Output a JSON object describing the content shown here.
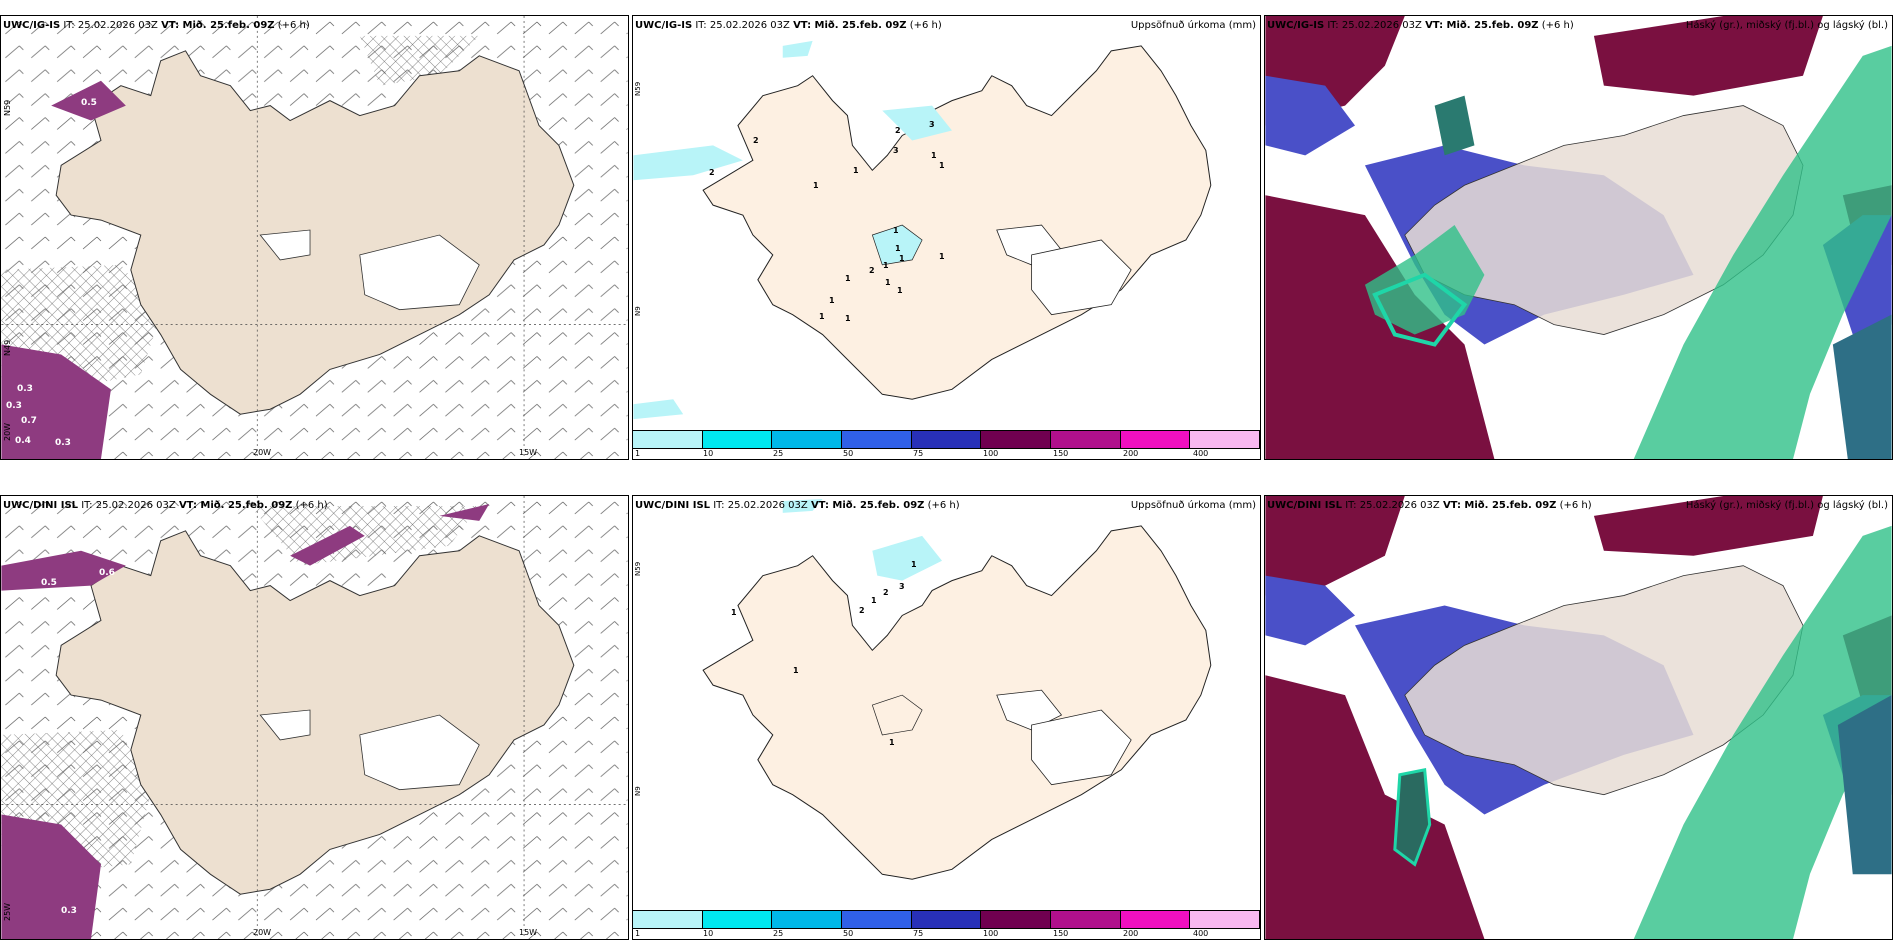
{
  "rows": [
    {
      "model": "UWC/IG-IS",
      "wind": {
        "lon_labels": [
          "20W",
          "15W"
        ],
        "lat_labels": [
          "N59",
          "N49",
          "20W"
        ],
        "values": [
          "0.3",
          "0.5",
          "0.7",
          "0.4",
          "0.3",
          "0.3"
        ]
      },
      "precip": {
        "lat_label": "N59",
        "lat_label2": "N9",
        "contour_labels": [
          "2",
          "2",
          "1",
          "1",
          "2",
          "3",
          "3",
          "1",
          "1",
          "1",
          "1",
          "1",
          "2",
          "1",
          "1",
          "1",
          "1",
          "1",
          "1",
          "1",
          "1"
        ]
      }
    },
    {
      "model": "UWC/DINI ISL",
      "wind": {
        "lon_labels": [
          "20W",
          "15W"
        ],
        "lat_labels": [
          "25W"
        ],
        "values": [
          "0.5",
          "0.6",
          "0.3"
        ]
      },
      "precip": {
        "lat_label": "N59",
        "lat_label2": "N9",
        "contour_labels": [
          "1",
          "1",
          "2",
          "2",
          "3",
          "1",
          "1",
          "1"
        ]
      }
    }
  ],
  "header": {
    "it_prefix": "IT:",
    "it_value": "25.02.2026 03Z",
    "vt_label": "VT: Mið. 25.feb. 09Z",
    "lead": "(+6 h)"
  },
  "precip_title": "Uppsöfnuð úrkoma (mm)",
  "cloud_title": "Háský (gr.), miðský (fj.bl.) og lágský (bl.)",
  "colorbar": {
    "ticks": [
      "1",
      "10",
      "25",
      "50",
      "75",
      "100",
      "150",
      "200",
      "400"
    ],
    "colors": [
      "#b8f4f8",
      "#00e8f0",
      "#00b8e8",
      "#3060e8",
      "#2830b8",
      "#700050",
      "#b0108c",
      "#f010c0",
      "#f8b8f0"
    ]
  },
  "colors": {
    "land": "#ede0d0",
    "land_precip": "#fdf0e2",
    "cloud_high": "#7a1040",
    "cloud_mid": "#4a50c8",
    "cloud_low": "#30c088"
  }
}
